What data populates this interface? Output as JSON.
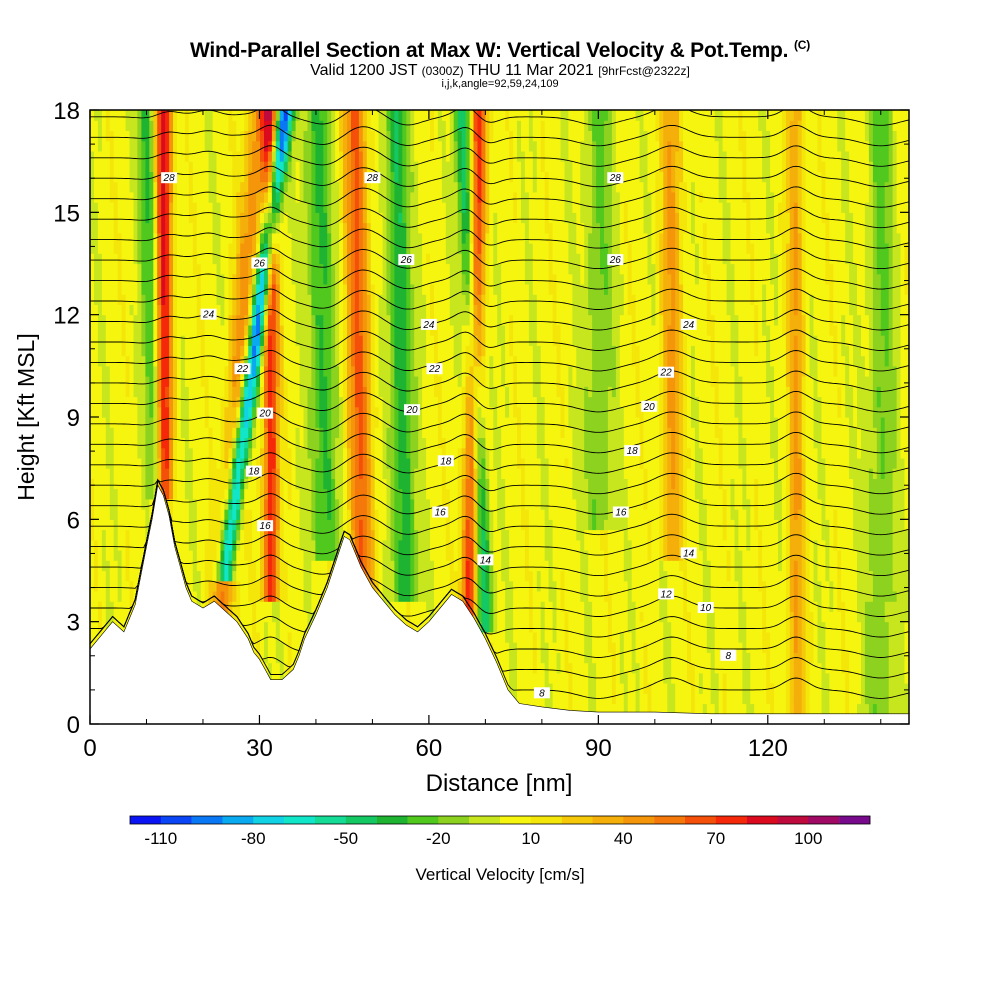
{
  "chart_data": {
    "type": "heatmap",
    "title": "Wind-Parallel Section at Max W: Vertical Velocity & Pot.Temp.",
    "title_mark": "(C)",
    "subtitle_main": "Valid 1200 JST",
    "subtitle_utc": "(0300Z)",
    "subtitle_date": "THU 11 Mar 2021",
    "subtitle_run": "[9hrFcst@2322z]",
    "subtitle_indices": "i,j,k,angle=92,59,24,109",
    "xlabel": "Distance [nm]",
    "ylabel": "Height [Kft MSL]",
    "xlim": [
      0,
      145
    ],
    "ylim": [
      0,
      18
    ],
    "x_ticks": [
      "0",
      "30",
      "60",
      "90",
      "120"
    ],
    "x_tick_values": [
      0,
      30,
      60,
      90,
      120
    ],
    "y_ticks": [
      "0",
      "3",
      "6",
      "9",
      "12",
      "15",
      "18"
    ],
    "y_tick_values": [
      0,
      3,
      6,
      9,
      12,
      15,
      18
    ],
    "colorbar": {
      "label": "Vertical Velocity [cm/s]",
      "min": -120,
      "max": 120,
      "step": 10,
      "tick_labels": [
        "-110",
        "-80",
        "-50",
        "-20",
        "10",
        "40",
        "70",
        "100"
      ],
      "tick_values": [
        -110,
        -80,
        -50,
        -20,
        10,
        40,
        70,
        100
      ],
      "colors": [
        "#0a14f5",
        "#0a46f5",
        "#0a78f5",
        "#0aaaf0",
        "#12d2e6",
        "#12e6c8",
        "#14dc96",
        "#14c864",
        "#1eb432",
        "#50c81e",
        "#8cd21e",
        "#c8e61e",
        "#f5f50f",
        "#f5e60a",
        "#f5c80a",
        "#f5af0a",
        "#f5960a",
        "#f5780a",
        "#f5500a",
        "#f5280a",
        "#dc0a1e",
        "#be0a3c",
        "#a00a64",
        "#780a8c"
      ]
    },
    "terrain": [
      [
        0,
        2.2
      ],
      [
        2,
        2.6
      ],
      [
        4,
        3.0
      ],
      [
        6,
        2.7
      ],
      [
        8,
        3.5
      ],
      [
        10,
        5.2
      ],
      [
        11,
        6.0
      ],
      [
        12,
        7.0
      ],
      [
        13,
        6.7
      ],
      [
        14,
        6.1
      ],
      [
        15,
        5.2
      ],
      [
        16,
        4.6
      ],
      [
        17,
        4.0
      ],
      [
        18,
        3.6
      ],
      [
        20,
        3.4
      ],
      [
        22,
        3.6
      ],
      [
        24,
        3.3
      ],
      [
        26,
        3.0
      ],
      [
        28,
        2.5
      ],
      [
        29,
        2.1
      ],
      [
        30,
        1.9
      ],
      [
        31,
        1.6
      ],
      [
        32,
        1.3
      ],
      [
        34,
        1.3
      ],
      [
        36,
        1.6
      ],
      [
        37,
        2.0
      ],
      [
        38,
        2.5
      ],
      [
        40,
        3.2
      ],
      [
        42,
        4.0
      ],
      [
        44,
        5.0
      ],
      [
        45,
        5.5
      ],
      [
        46,
        5.4
      ],
      [
        48,
        4.6
      ],
      [
        50,
        4.0
      ],
      [
        52,
        3.6
      ],
      [
        54,
        3.2
      ],
      [
        56,
        2.9
      ],
      [
        58,
        2.7
      ],
      [
        60,
        3.0
      ],
      [
        62,
        3.4
      ],
      [
        64,
        3.8
      ],
      [
        66,
        3.6
      ],
      [
        68,
        3.1
      ],
      [
        70,
        2.5
      ],
      [
        72,
        1.8
      ],
      [
        74,
        1.0
      ],
      [
        76,
        0.6
      ],
      [
        80,
        0.5
      ],
      [
        85,
        0.4
      ],
      [
        90,
        0.35
      ],
      [
        100,
        0.35
      ],
      [
        110,
        0.3
      ],
      [
        120,
        0.3
      ],
      [
        130,
        0.3
      ],
      [
        140,
        0.3
      ],
      [
        145,
        0.3
      ]
    ],
    "w_updrafts": [
      {
        "x": 13,
        "x_top": 13,
        "z_bottom": 7.0,
        "amplitude": 85,
        "width": 1.6
      },
      {
        "x": 23,
        "x_top": 30,
        "z_bottom": 2.0,
        "amplitude": 45,
        "width": 2.2
      },
      {
        "x": 32,
        "x_top": 32,
        "z_bottom": 4.0,
        "amplitude": 75,
        "width": 1.4
      },
      {
        "x": 48,
        "x_top": 47,
        "z_bottom": 4.0,
        "amplitude": 55,
        "width": 2.2
      },
      {
        "x": 67,
        "x_top": 69,
        "z_bottom": 3.0,
        "amplitude": 75,
        "width": 1.5
      },
      {
        "x": 103,
        "x_top": 103,
        "z_bottom": 5.0,
        "amplitude": 35,
        "width": 2.0
      },
      {
        "x": 125,
        "x_top": 125,
        "z_bottom": 0.3,
        "amplitude": 35,
        "width": 1.5
      }
    ],
    "w_downdrafts": [
      {
        "x": 12,
        "x_top": 10,
        "z_bottom": 7.0,
        "amplitude": -45,
        "width": 1.6
      },
      {
        "x": 24,
        "x_top": 34.5,
        "z_bottom": 4.5,
        "amplitude": -110,
        "width": 1.5
      },
      {
        "x": 42,
        "x_top": 40,
        "z_bottom": 5.0,
        "amplitude": -40,
        "width": 2.2
      },
      {
        "x": 56,
        "x_top": 54,
        "z_bottom": 4.0,
        "amplitude": -45,
        "width": 2.0
      },
      {
        "x": 70,
        "x_top": 66,
        "z_bottom": 3.0,
        "amplitude": -60,
        "width": 1.4
      },
      {
        "x": 90,
        "x_top": 90,
        "z_bottom": 6.0,
        "amplitude": -25,
        "width": 2.5
      },
      {
        "x": 140,
        "x_top": 140,
        "z_bottom": 0.3,
        "amplitude": -25,
        "width": 2.5
      }
    ],
    "theta_contour_labels": [
      {
        "x": 14,
        "y": 16.0,
        "text": "28"
      },
      {
        "x": 50,
        "y": 16.0,
        "text": "28"
      },
      {
        "x": 93,
        "y": 16.0,
        "text": "28"
      },
      {
        "x": 30,
        "y": 13.5,
        "text": "26"
      },
      {
        "x": 56,
        "y": 13.6,
        "text": "26"
      },
      {
        "x": 93,
        "y": 13.6,
        "text": "26"
      },
      {
        "x": 21,
        "y": 12.0,
        "text": "24"
      },
      {
        "x": 60,
        "y": 11.7,
        "text": "24"
      },
      {
        "x": 106,
        "y": 11.7,
        "text": "24"
      },
      {
        "x": 27,
        "y": 10.4,
        "text": "22"
      },
      {
        "x": 61,
        "y": 10.4,
        "text": "22"
      },
      {
        "x": 102,
        "y": 10.3,
        "text": "22"
      },
      {
        "x": 31,
        "y": 9.1,
        "text": "20"
      },
      {
        "x": 57,
        "y": 9.2,
        "text": "20"
      },
      {
        "x": 99,
        "y": 9.3,
        "text": "20"
      },
      {
        "x": 29,
        "y": 7.4,
        "text": "18"
      },
      {
        "x": 63,
        "y": 7.7,
        "text": "18"
      },
      {
        "x": 96,
        "y": 8.0,
        "text": "18"
      },
      {
        "x": 31,
        "y": 5.8,
        "text": "16"
      },
      {
        "x": 62,
        "y": 6.2,
        "text": "16"
      },
      {
        "x": 94,
        "y": 6.2,
        "text": "16"
      },
      {
        "x": 70,
        "y": 4.8,
        "text": "14"
      },
      {
        "x": 106,
        "y": 5.0,
        "text": "14"
      },
      {
        "x": 102,
        "y": 3.8,
        "text": "12"
      },
      {
        "x": 109,
        "y": 3.4,
        "text": "10"
      },
      {
        "x": 113,
        "y": 2.0,
        "text": "8"
      },
      {
        "x": 80,
        "y": 0.9,
        "text": "8"
      }
    ]
  }
}
